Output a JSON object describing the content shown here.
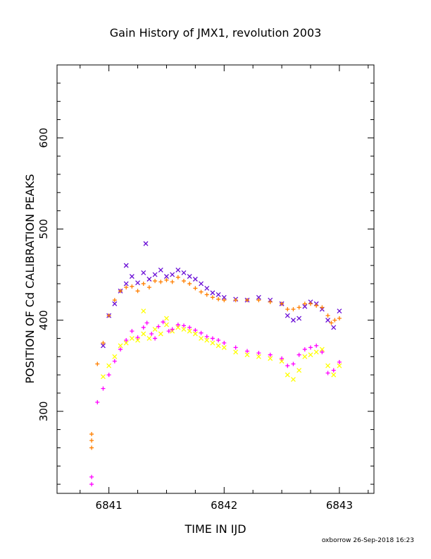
{
  "chart_data": {
    "type": "scatter",
    "title": "Gain History of JMX1, revolution 2003",
    "xlabel": "TIME IN IJD",
    "ylabel": "POSITION OF Cd CALIBRATION PEAKS",
    "xlim": [
      6840.55,
      6843.3
    ],
    "ylim": [
      210,
      680
    ],
    "x_ticks": [
      6841,
      6842,
      6843
    ],
    "x_tick_labels": [
      "6841",
      "6842",
      "6843"
    ],
    "y_ticks": [
      300,
      400,
      500,
      600
    ],
    "y_tick_labels": [
      "300",
      "400",
      "500",
      "600"
    ],
    "legend": "none",
    "grid": false,
    "series": [
      {
        "marker": "x",
        "color": "#6a0dd6",
        "points": [
          [
            6840.95,
            372
          ],
          [
            6841.0,
            405
          ],
          [
            6841.05,
            418
          ],
          [
            6841.1,
            432
          ],
          [
            6841.15,
            440
          ],
          [
            6841.2,
            448
          ],
          [
            6841.25,
            441
          ],
          [
            6841.3,
            452
          ],
          [
            6841.35,
            445
          ],
          [
            6841.4,
            450
          ],
          [
            6841.45,
            455
          ],
          [
            6841.5,
            448
          ],
          [
            6841.55,
            450
          ],
          [
            6841.6,
            455
          ],
          [
            6841.65,
            452
          ],
          [
            6841.7,
            448
          ],
          [
            6841.75,
            445
          ],
          [
            6841.8,
            440
          ],
          [
            6841.85,
            435
          ],
          [
            6841.9,
            430
          ],
          [
            6841.95,
            428
          ],
          [
            6842.0,
            425
          ],
          [
            6842.1,
            423
          ],
          [
            6842.2,
            422
          ],
          [
            6842.3,
            425
          ],
          [
            6842.4,
            422
          ],
          [
            6842.5,
            418
          ],
          [
            6842.55,
            405
          ],
          [
            6842.6,
            400
          ],
          [
            6842.65,
            402
          ],
          [
            6842.7,
            415
          ],
          [
            6842.75,
            420
          ],
          [
            6842.8,
            418
          ],
          [
            6842.85,
            412
          ],
          [
            6842.9,
            400
          ],
          [
            6842.95,
            392
          ],
          [
            6843.0,
            410
          ],
          [
            6841.32,
            484
          ],
          [
            6841.15,
            460
          ]
        ]
      },
      {
        "marker": "+",
        "color": "#ff7f00",
        "points": [
          [
            6840.85,
            275
          ],
          [
            6840.85,
            268
          ],
          [
            6840.85,
            260
          ],
          [
            6840.9,
            352
          ],
          [
            6840.95,
            375
          ],
          [
            6841.0,
            405
          ],
          [
            6841.05,
            422
          ],
          [
            6841.1,
            432
          ],
          [
            6841.15,
            436
          ],
          [
            6841.2,
            437
          ],
          [
            6841.25,
            432
          ],
          [
            6841.3,
            440
          ],
          [
            6841.35,
            436
          ],
          [
            6841.4,
            443
          ],
          [
            6841.45,
            442
          ],
          [
            6841.5,
            444
          ],
          [
            6841.55,
            442
          ],
          [
            6841.6,
            447
          ],
          [
            6841.65,
            443
          ],
          [
            6841.7,
            440
          ],
          [
            6841.75,
            435
          ],
          [
            6841.8,
            431
          ],
          [
            6841.85,
            428
          ],
          [
            6841.9,
            425
          ],
          [
            6841.95,
            423
          ],
          [
            6842.0,
            422
          ],
          [
            6842.1,
            422
          ],
          [
            6842.2,
            422
          ],
          [
            6842.3,
            422
          ],
          [
            6842.4,
            420
          ],
          [
            6842.5,
            418
          ],
          [
            6842.55,
            412
          ],
          [
            6842.6,
            412
          ],
          [
            6842.65,
            414
          ],
          [
            6842.7,
            418
          ],
          [
            6842.75,
            418
          ],
          [
            6842.8,
            416
          ],
          [
            6842.85,
            414
          ],
          [
            6842.9,
            405
          ],
          [
            6842.93,
            397
          ],
          [
            6842.96,
            400
          ],
          [
            6843.0,
            402
          ]
        ]
      },
      {
        "marker": "x",
        "color": "#ffff00",
        "points": [
          [
            6840.95,
            338
          ],
          [
            6841.0,
            350
          ],
          [
            6841.05,
            360
          ],
          [
            6841.1,
            372
          ],
          [
            6841.15,
            375
          ],
          [
            6841.2,
            380
          ],
          [
            6841.25,
            378
          ],
          [
            6841.3,
            385
          ],
          [
            6841.35,
            380
          ],
          [
            6841.4,
            390
          ],
          [
            6841.45,
            385
          ],
          [
            6841.5,
            395
          ],
          [
            6841.55,
            388
          ],
          [
            6841.6,
            392
          ],
          [
            6841.65,
            390
          ],
          [
            6841.7,
            388
          ],
          [
            6841.75,
            385
          ],
          [
            6841.8,
            380
          ],
          [
            6841.85,
            378
          ],
          [
            6841.9,
            375
          ],
          [
            6841.95,
            372
          ],
          [
            6842.0,
            370
          ],
          [
            6842.1,
            365
          ],
          [
            6842.2,
            362
          ],
          [
            6842.3,
            360
          ],
          [
            6842.4,
            358
          ],
          [
            6842.5,
            355
          ],
          [
            6842.55,
            340
          ],
          [
            6842.6,
            335
          ],
          [
            6842.65,
            345
          ],
          [
            6842.7,
            360
          ],
          [
            6842.75,
            362
          ],
          [
            6842.8,
            365
          ],
          [
            6842.85,
            368
          ],
          [
            6842.9,
            350
          ],
          [
            6842.95,
            340
          ],
          [
            6843.0,
            350
          ],
          [
            6841.3,
            410
          ],
          [
            6841.5,
            402
          ]
        ]
      },
      {
        "marker": "+",
        "color": "#ff00ff",
        "points": [
          [
            6840.85,
            228
          ],
          [
            6840.85,
            220
          ],
          [
            6840.9,
            310
          ],
          [
            6840.95,
            325
          ],
          [
            6841.0,
            340
          ],
          [
            6841.05,
            355
          ],
          [
            6841.1,
            368
          ],
          [
            6841.15,
            378
          ],
          [
            6841.2,
            388
          ],
          [
            6841.25,
            381
          ],
          [
            6841.3,
            392
          ],
          [
            6841.33,
            397
          ],
          [
            6841.37,
            385
          ],
          [
            6841.4,
            380
          ],
          [
            6841.43,
            393
          ],
          [
            6841.47,
            398
          ],
          [
            6841.52,
            388
          ],
          [
            6841.55,
            390
          ],
          [
            6841.6,
            395
          ],
          [
            6841.65,
            394
          ],
          [
            6841.7,
            392
          ],
          [
            6841.75,
            389
          ],
          [
            6841.8,
            386
          ],
          [
            6841.85,
            382
          ],
          [
            6841.9,
            380
          ],
          [
            6841.95,
            378
          ],
          [
            6842.0,
            375
          ],
          [
            6842.1,
            370
          ],
          [
            6842.2,
            366
          ],
          [
            6842.3,
            364
          ],
          [
            6842.4,
            362
          ],
          [
            6842.5,
            358
          ],
          [
            6842.55,
            350
          ],
          [
            6842.6,
            352
          ],
          [
            6842.65,
            362
          ],
          [
            6842.7,
            368
          ],
          [
            6842.75,
            370
          ],
          [
            6842.8,
            372
          ],
          [
            6842.85,
            365
          ],
          [
            6842.9,
            342
          ],
          [
            6842.95,
            345
          ],
          [
            6843.0,
            354
          ]
        ]
      }
    ]
  },
  "footer": "oxborrow 26-Sep-2018 16:23"
}
